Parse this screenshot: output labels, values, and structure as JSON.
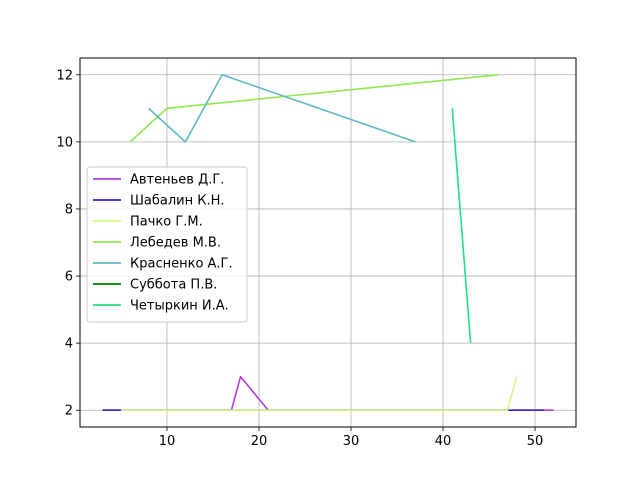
{
  "chart_data": {
    "type": "line",
    "title": "",
    "xlabel": "",
    "ylabel": "",
    "xlim": [
      0.55,
      54.45
    ],
    "ylim": [
      1.5,
      12.5
    ],
    "xticks": [
      10,
      20,
      30,
      40,
      50
    ],
    "yticks": [
      2,
      4,
      6,
      8,
      10,
      12
    ],
    "grid": true,
    "legend_position": "center-left",
    "series": [
      {
        "name": "Автеньев Д.Г.",
        "color": "#b040e0",
        "points": [
          [
            3,
            2
          ],
          [
            17,
            2
          ],
          [
            18,
            3
          ],
          [
            21,
            2
          ],
          [
            52,
            2
          ]
        ]
      },
      {
        "name": "Шабалин К.Н.",
        "color": "#4020d0",
        "points": [
          [
            3,
            2
          ],
          [
            5,
            2
          ],
          [
            47,
            2
          ],
          [
            51,
            2
          ]
        ]
      },
      {
        "name": "Пачко Г.М.",
        "color": "#d0f880",
        "points": [
          [
            5,
            2
          ],
          [
            47,
            2
          ],
          [
            48,
            3
          ]
        ]
      },
      {
        "name": "Лебедев М.В.",
        "color": "#90e850",
        "points": [
          [
            6,
            10
          ],
          [
            10,
            11
          ],
          [
            46,
            12
          ]
        ]
      },
      {
        "name": "Красненко А.Г.",
        "color": "#60b8c0",
        "points": [
          [
            8,
            11
          ],
          [
            12,
            10
          ],
          [
            16,
            12
          ],
          [
            37,
            10
          ]
        ]
      },
      {
        "name": "Суббота П.В.",
        "color": "#008000",
        "points": []
      },
      {
        "name": "Четыркин И.А.",
        "color": "#20e080",
        "points": [
          [
            41,
            11
          ],
          [
            43,
            4
          ]
        ]
      }
    ]
  }
}
